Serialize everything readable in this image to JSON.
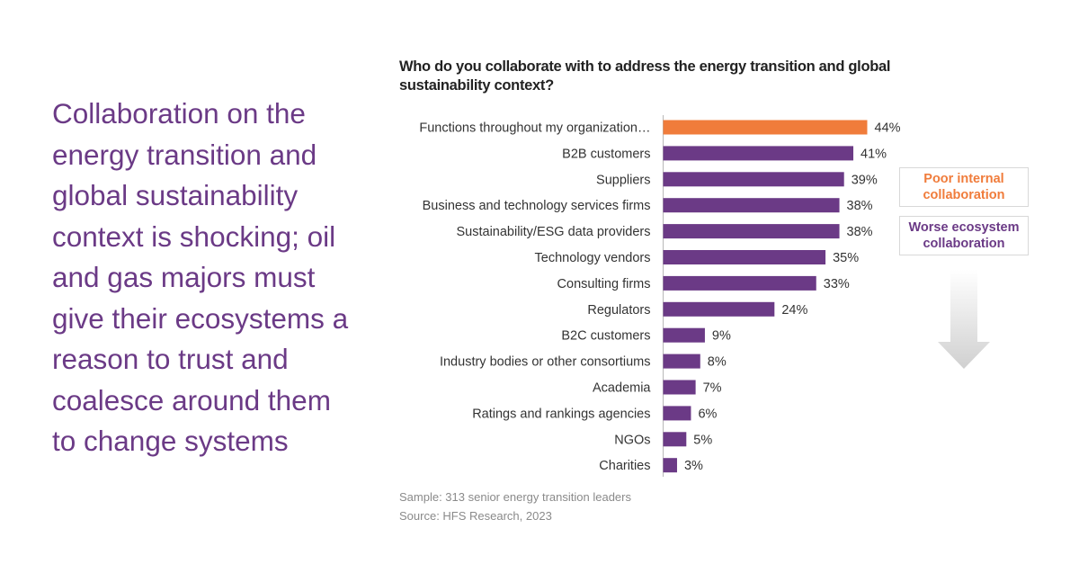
{
  "headline": "Collaboration on the energy transition and global sustainability context is shocking; oil and gas majors must give their ecosystems a reason to trust and coalesce around them to change systems",
  "colors": {
    "headline": "#6b3a86",
    "bar_default": "#6b3a86",
    "bar_highlight": "#f07c3b"
  },
  "chart_data": {
    "type": "bar",
    "orientation": "horizontal",
    "title": "Who do you collaborate with to address the energy transition and global sustainability context?",
    "categories": [
      "Functions throughout my organization…",
      "B2B customers",
      "Suppliers",
      "Business and technology services firms",
      "Sustainability/ESG data providers",
      "Technology vendors",
      "Consulting firms",
      "Regulators",
      "B2C customers",
      "Industry bodies or other consortiums",
      "Academia",
      "Ratings and rankings agencies",
      "NGOs",
      "Charities"
    ],
    "values": [
      44,
      41,
      39,
      38,
      38,
      35,
      33,
      24,
      9,
      8,
      7,
      6,
      5,
      3
    ],
    "value_labels": [
      "44%",
      "41%",
      "39%",
      "38%",
      "38%",
      "35%",
      "33%",
      "24%",
      "9%",
      "8%",
      "7%",
      "6%",
      "5%",
      "3%"
    ],
    "highlight_index": 0,
    "unit": "%",
    "xlim": [
      0,
      100
    ],
    "grid": false,
    "legend": "none"
  },
  "callouts": {
    "internal": "Poor internal collaboration",
    "ecosystem": "Worse ecosystem collaboration",
    "arrow_icon": "down-arrow-icon"
  },
  "footnotes": {
    "sample": "Sample: 313 senior energy transition leaders",
    "source": "Source: HFS Research, 2023"
  }
}
